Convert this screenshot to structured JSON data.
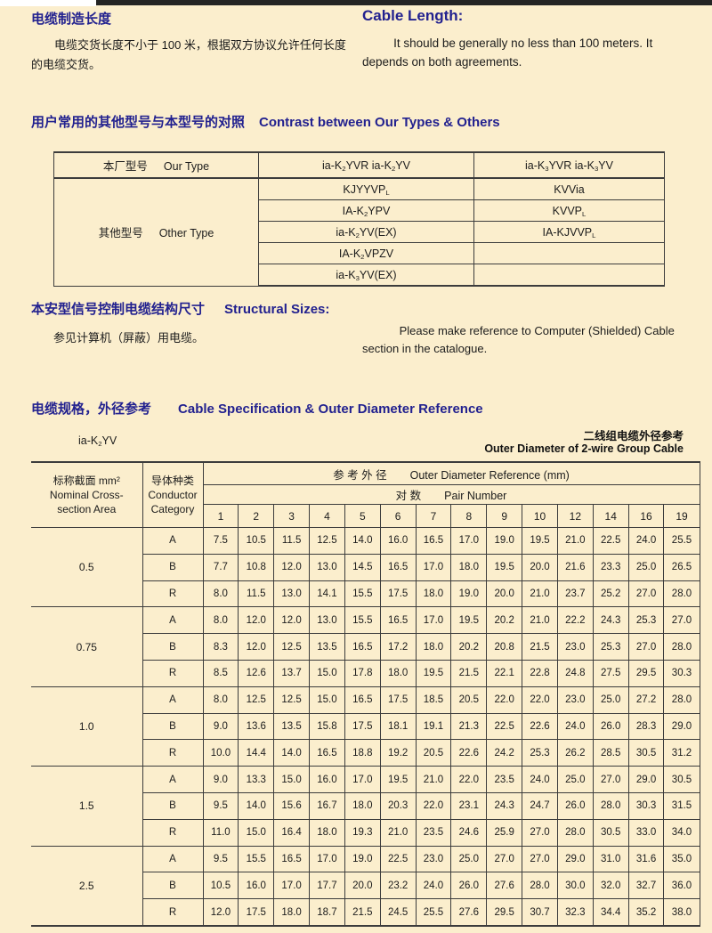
{
  "intro": {
    "zh_title": "电缆制造长度",
    "zh_body": "电缆交货长度不小于 100 米，根据双方协议允许任何长度的电缆交货。",
    "en_title": "Cable Length:",
    "en_body": "It should be generally no less than 100 meters. It depends on both agreements."
  },
  "types_section": {
    "heading_zh": "用户常用的其他型号与本型号的对照",
    "heading_en": "Contrast between Our Types & Others",
    "table": {
      "our_label_zh": "本厂型号",
      "our_label_en": "Our Type",
      "other_label_zh": "其他型号",
      "other_label_en": "Other Type",
      "our_types": [
        "ia-K~2~YVR ia-K~2~YV",
        "ia-K~3~YVR ia-K~3~YV"
      ],
      "other_rows": [
        [
          "KJYYVP~L~",
          "KVVia"
        ],
        [
          "IA-K~2~YPV",
          "KVVP~L~"
        ],
        [
          "ia-K~2~YV(EX)",
          "IA-KJVVP~L~"
        ],
        [
          "IA-K~2~VPZV",
          ""
        ],
        [
          "ia-K~3~YV(EX)",
          ""
        ]
      ]
    }
  },
  "structural_section": {
    "heading_zh": "本安型信号控制电缆结构尺寸",
    "heading_en": "Structural Sizes:",
    "body_zh": "参见计算机（屏蔽）用电缆。",
    "body_en": "Please make reference to Computer (Shielded) Cable section in the catalogue."
  },
  "spec_section": {
    "heading_zh": "电缆规格，外径参考",
    "heading_en": "Cable Specification & Outer Diameter Reference",
    "model": "ia-K~2~YV",
    "note_zh": "二线组电缆外径参考",
    "note_en": "Outer Diameter of 2-wire Group Cable"
  },
  "spec_table": {
    "col1_header": [
      "标称截面 mm²",
      "Nominal Cross-",
      "section Area"
    ],
    "col2_header": [
      "导体种类",
      "Conductor",
      "Category"
    ],
    "diameter_header_zh": "参 考 外 径",
    "diameter_header_en": "Outer Diameter Reference (mm)",
    "pair_header_zh": "对 数",
    "pair_header_en": "Pair Number",
    "pair_numbers": [
      "1",
      "2",
      "3",
      "4",
      "5",
      "6",
      "7",
      "8",
      "9",
      "10",
      "12",
      "14",
      "16",
      "19"
    ],
    "groups": [
      {
        "size": "0.5",
        "rows": [
          {
            "cat": "A",
            "values": [
              "7.5",
              "10.5",
              "11.5",
              "12.5",
              "14.0",
              "16.0",
              "16.5",
              "17.0",
              "19.0",
              "19.5",
              "21.0",
              "22.5",
              "24.0",
              "25.5"
            ]
          },
          {
            "cat": "B",
            "values": [
              "7.7",
              "10.8",
              "12.0",
              "13.0",
              "14.5",
              "16.5",
              "17.0",
              "18.0",
              "19.5",
              "20.0",
              "21.6",
              "23.3",
              "25.0",
              "26.5"
            ]
          },
          {
            "cat": "R",
            "values": [
              "8.0",
              "11.5",
              "13.0",
              "14.1",
              "15.5",
              "17.5",
              "18.0",
              "19.0",
              "20.0",
              "21.0",
              "23.7",
              "25.2",
              "27.0",
              "28.0"
            ]
          }
        ]
      },
      {
        "size": "0.75",
        "rows": [
          {
            "cat": "A",
            "values": [
              "8.0",
              "12.0",
              "12.0",
              "13.0",
              "15.5",
              "16.5",
              "17.0",
              "19.5",
              "20.2",
              "21.0",
              "22.2",
              "24.3",
              "25.3",
              "27.0"
            ]
          },
          {
            "cat": "B",
            "values": [
              "8.3",
              "12.0",
              "12.5",
              "13.5",
              "16.5",
              "17.2",
              "18.0",
              "20.2",
              "20.8",
              "21.5",
              "23.0",
              "25.3",
              "27.0",
              "28.0"
            ]
          },
          {
            "cat": "R",
            "values": [
              "8.5",
              "12.6",
              "13.7",
              "15.0",
              "17.8",
              "18.0",
              "19.5",
              "21.5",
              "22.1",
              "22.8",
              "24.8",
              "27.5",
              "29.5",
              "30.3"
            ]
          }
        ]
      },
      {
        "size": "1.0",
        "rows": [
          {
            "cat": "A",
            "values": [
              "8.0",
              "12.5",
              "12.5",
              "15.0",
              "16.5",
              "17.5",
              "18.5",
              "20.5",
              "22.0",
              "22.0",
              "23.0",
              "25.0",
              "27.2",
              "28.0"
            ]
          },
          {
            "cat": "B",
            "values": [
              "9.0",
              "13.6",
              "13.5",
              "15.8",
              "17.5",
              "18.1",
              "19.1",
              "21.3",
              "22.5",
              "22.6",
              "24.0",
              "26.0",
              "28.3",
              "29.0"
            ]
          },
          {
            "cat": "R",
            "values": [
              "10.0",
              "14.4",
              "14.0",
              "16.5",
              "18.8",
              "19.2",
              "20.5",
              "22.6",
              "24.2",
              "25.3",
              "26.2",
              "28.5",
              "30.5",
              "31.2"
            ]
          }
        ]
      },
      {
        "size": "1.5",
        "rows": [
          {
            "cat": "A",
            "values": [
              "9.0",
              "13.3",
              "15.0",
              "16.0",
              "17.0",
              "19.5",
              "21.0",
              "22.0",
              "23.5",
              "24.0",
              "25.0",
              "27.0",
              "29.0",
              "30.5"
            ]
          },
          {
            "cat": "B",
            "values": [
              "9.5",
              "14.0",
              "15.6",
              "16.7",
              "18.0",
              "20.3",
              "22.0",
              "23.1",
              "24.3",
              "24.7",
              "26.0",
              "28.0",
              "30.3",
              "31.5"
            ]
          },
          {
            "cat": "R",
            "values": [
              "11.0",
              "15.0",
              "16.4",
              "18.0",
              "19.3",
              "21.0",
              "23.5",
              "24.6",
              "25.9",
              "27.0",
              "28.0",
              "30.5",
              "33.0",
              "34.0"
            ]
          }
        ]
      },
      {
        "size": "2.5",
        "rows": [
          {
            "cat": "A",
            "values": [
              "9.5",
              "15.5",
              "16.5",
              "17.0",
              "19.0",
              "22.5",
              "23.0",
              "25.0",
              "27.0",
              "27.0",
              "29.0",
              "31.0",
              "31.6",
              "35.0"
            ]
          },
          {
            "cat": "B",
            "values": [
              "10.5",
              "16.0",
              "17.0",
              "17.7",
              "20.0",
              "23.2",
              "24.0",
              "26.0",
              "27.6",
              "28.0",
              "30.0",
              "32.0",
              "32.7",
              "36.0"
            ]
          },
          {
            "cat": "R",
            "values": [
              "12.0",
              "17.5",
              "18.0",
              "18.7",
              "21.5",
              "24.5",
              "25.5",
              "27.6",
              "29.5",
              "30.7",
              "32.3",
              "34.4",
              "35.2",
              "38.0"
            ]
          }
        ]
      }
    ]
  }
}
